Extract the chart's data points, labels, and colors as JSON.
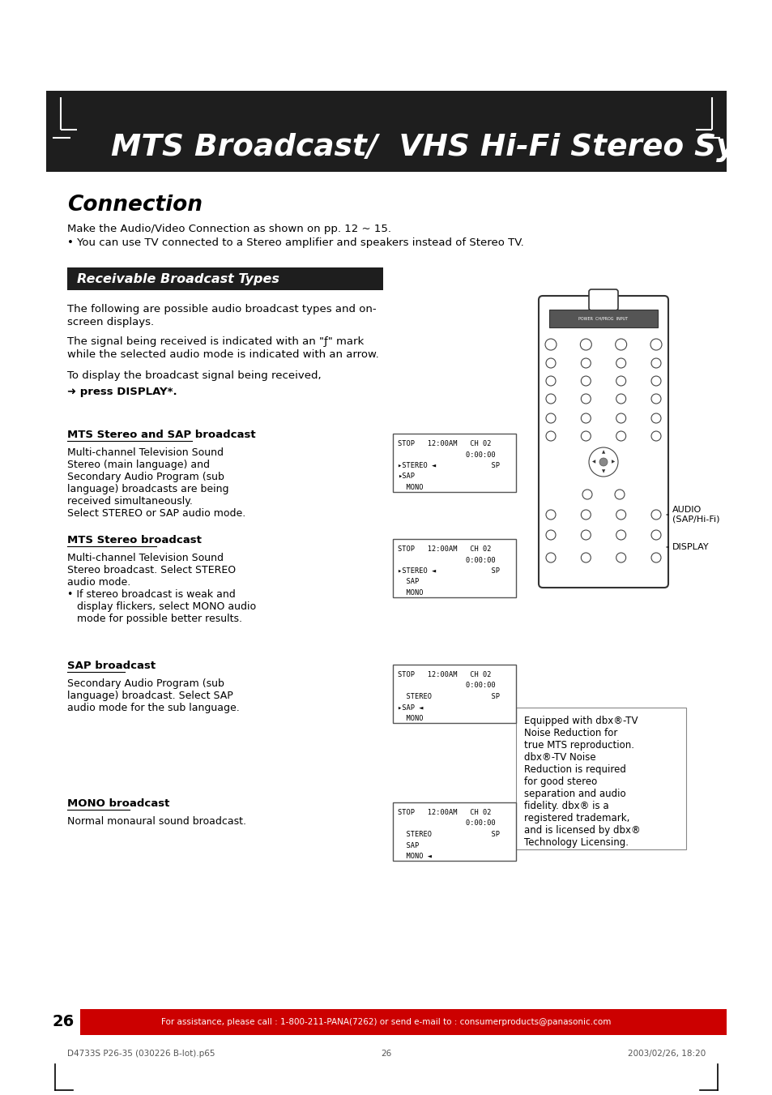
{
  "page_bg": "#ffffff",
  "header_bg": "#1e1e1e",
  "header_text": "MTS Broadcast/  VHS Hi-Fi Stereo System",
  "header_text_color": "#ffffff",
  "section_title": "Connection",
  "body_text_color": "#000000",
  "connection_line1": "Make the Audio/Video Connection as shown on pp. 12 ~ 15.",
  "connection_line2": "• You can use TV connected to a Stereo amplifier and speakers instead of Stereo TV.",
  "receivable_bg": "#1e1e1e",
  "receivable_text": "Receivable Broadcast Types",
  "receivable_text_color": "#ffffff",
  "intro_para1_l1": "The following are possible audio broadcast types and on-",
  "intro_para1_l2": "screen displays.",
  "intro_para2_l1": "The signal being received is indicated with an \"ƒ\" mark",
  "intro_para2_l2": "while the selected audio mode is indicated with an arrow.",
  "intro_para3": "To display the broadcast signal being received,",
  "intro_para4": "➜ press DISPLAY*.",
  "audio_label": "AUDIO\n(SAP/Hi-Fi)",
  "display_label": "DISPLAY",
  "broadcast_sections": [
    {
      "title": "MTS Stereo and SAP broadcast",
      "body_lines": [
        "Multi-channel Television Sound",
        "Stereo (main language) and",
        "Secondary Audio Program (sub",
        "language) broadcasts are being",
        "received simultaneously.",
        "Select STEREO or SAP audio mode."
      ],
      "display_lines": [
        "STOP   12:00AM   CH 02",
        "                0:00:00",
        "▸STEREO ◄             SP",
        "▸SAP",
        "  MONO"
      ]
    },
    {
      "title": "MTS Stereo broadcast",
      "body_lines": [
        "Multi-channel Television Sound",
        "Stereo broadcast. Select STEREO",
        "audio mode.",
        "• If stereo broadcast is weak and",
        "   display flickers, select MONO audio",
        "   mode for possible better results."
      ],
      "display_lines": [
        "STOP   12:00AM   CH 02",
        "                0:00:00",
        "▸STEREO ◄             SP",
        "  SAP",
        "  MONO"
      ]
    },
    {
      "title": "SAP broadcast",
      "body_lines": [
        "Secondary Audio Program (sub",
        "language) broadcast. Select SAP",
        "audio mode for the sub language."
      ],
      "display_lines": [
        "STOP   12:00AM   CH 02",
        "                0:00:00",
        "  STEREO              SP",
        "▸SAP ◄",
        "  MONO"
      ]
    },
    {
      "title": "MONO broadcast",
      "body_lines": [
        "Normal monaural sound broadcast."
      ],
      "display_lines": [
        "STOP   12:00AM   CH 02",
        "                0:00:00",
        "  STEREO              SP",
        "  SAP",
        "  MONO ◄"
      ]
    }
  ],
  "dbx_text_lines": [
    "Equipped with dbx®-TV",
    "Noise Reduction for",
    "true MTS reproduction.",
    "dbx®-TV Noise",
    "Reduction is required",
    "for good stereo",
    "separation and audio",
    "fidelity. dbx® is a",
    "registered trademark,",
    "and is licensed by dbx®",
    "Technology Licensing."
  ],
  "footer_bg": "#cc0000",
  "footer_text": "For assistance, please call : 1-800-211-PANA(7262) or send e-mail to : consumerproducts@panasonic.com",
  "footer_text_color": "#ffffff",
  "page_number": "26",
  "bottom_text1": "D4733S P26-35 (030226 B-lot).p65",
  "bottom_text2": "26",
  "bottom_text3": "2003/02/26, 18:20"
}
